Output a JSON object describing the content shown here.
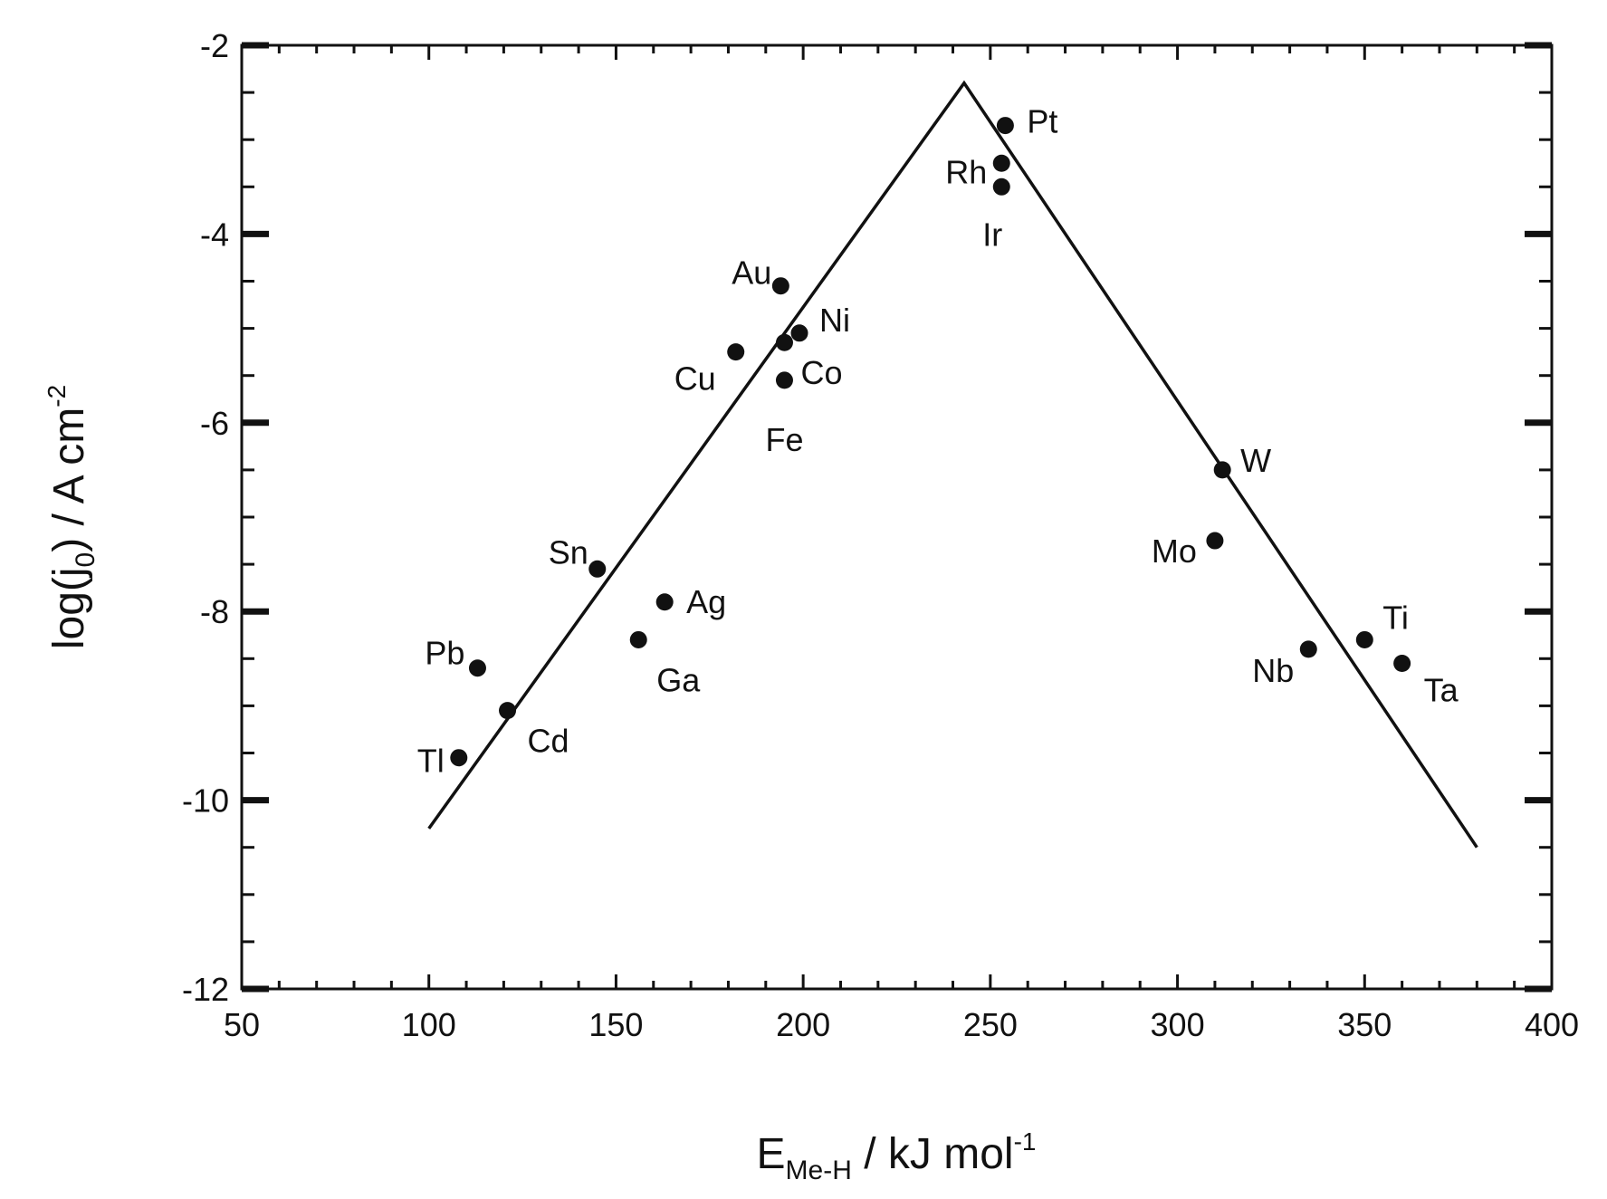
{
  "chart_data": {
    "type": "scatter",
    "title": "",
    "xlabel": {
      "main": "E",
      "sub": "Me-H",
      "rest": " / kJ mol",
      "sup": "-1"
    },
    "ylabel": {
      "pre": "log(j",
      "sub": "0",
      "mid": ") / A cm",
      "sup": "-2"
    },
    "xlim": [
      50,
      400
    ],
    "ylim": [
      -12,
      -2
    ],
    "x_ticks": [
      50,
      100,
      150,
      200,
      250,
      300,
      350,
      400
    ],
    "y_ticks": [
      -12,
      -10,
      -8,
      -6,
      -4,
      -2
    ],
    "x_tick_labels": [
      "50",
      "100",
      "150",
      "200",
      "250",
      "300",
      "350",
      "400"
    ],
    "y_tick_labels": [
      "-12",
      "-10",
      "-8",
      "-6",
      "-4",
      "-2"
    ],
    "grid": false,
    "legend": "none",
    "volcano_line": [
      {
        "x": 100,
        "y": -10.3
      },
      {
        "x": 243,
        "y": -2.4
      },
      {
        "x": 380,
        "y": -10.5
      }
    ],
    "points": [
      {
        "label": "Pt",
        "x": 254,
        "y": -2.85
      },
      {
        "label": "Rh",
        "x": 253,
        "y": -3.25
      },
      {
        "label": "Ir",
        "x": 253,
        "y": -3.5
      },
      {
        "label": "Au",
        "x": 194,
        "y": -4.55
      },
      {
        "label": "Ni",
        "x": 199,
        "y": -5.05
      },
      {
        "label": "Co",
        "x": 195,
        "y": -5.15
      },
      {
        "label": "Cu",
        "x": 182,
        "y": -5.25
      },
      {
        "label": "Fe",
        "x": 195,
        "y": -5.55
      },
      {
        "label": "W",
        "x": 312,
        "y": -6.5
      },
      {
        "label": "Mo",
        "x": 310,
        "y": -7.25
      },
      {
        "label": "Sn",
        "x": 145,
        "y": -7.55
      },
      {
        "label": "Ag",
        "x": 163,
        "y": -7.9
      },
      {
        "label": "Ga",
        "x": 156,
        "y": -8.3
      },
      {
        "label": "Ti",
        "x": 350,
        "y": -8.3
      },
      {
        "label": "Nb",
        "x": 335,
        "y": -8.4
      },
      {
        "label": "Ta",
        "x": 360,
        "y": -8.55
      },
      {
        "label": "Pb",
        "x": 113,
        "y": -8.6
      },
      {
        "label": "Cd",
        "x": 121,
        "y": -9.05
      },
      {
        "label": "Tl",
        "x": 108,
        "y": -9.55
      }
    ]
  }
}
